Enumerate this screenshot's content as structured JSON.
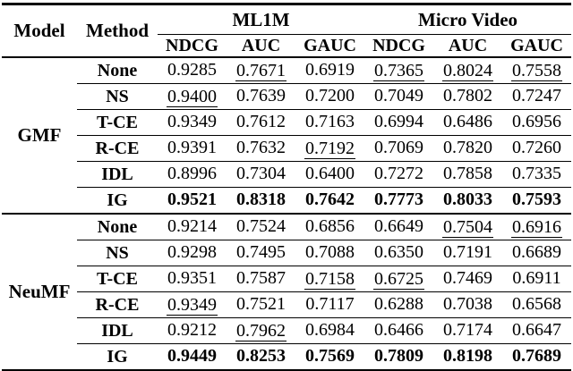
{
  "page": {
    "background_color": "#ffffff",
    "text_color": "#000000",
    "rule_color": "#000000",
    "notes": "Academic paper results table; bold = best result, underline = second-best result"
  },
  "table": {
    "header": {
      "model": "Model",
      "method": "Method",
      "groups": [
        {
          "label": "ML1M"
        },
        {
          "label": "Micro Video"
        }
      ],
      "metrics": [
        "NDCG",
        "AUC",
        "GAUC",
        "NDCG",
        "AUC",
        "GAUC"
      ]
    },
    "sections": [
      {
        "model": "GMF",
        "rows": [
          {
            "method": "None",
            "bold": false,
            "values": [
              "0.9285",
              "0.7671",
              "0.6919",
              "0.7365",
              "0.8024",
              "0.7558"
            ],
            "underlined": [
              false,
              true,
              false,
              true,
              true,
              true
            ]
          },
          {
            "method": "NS",
            "bold": false,
            "values": [
              "0.9400",
              "0.7639",
              "0.7200",
              "0.7049",
              "0.7802",
              "0.7247"
            ],
            "underlined": [
              true,
              false,
              false,
              false,
              false,
              false
            ]
          },
          {
            "method": "T-CE",
            "bold": false,
            "values": [
              "0.9349",
              "0.7612",
              "0.7163",
              "0.6994",
              "0.6486",
              "0.6956"
            ],
            "underlined": [
              false,
              false,
              false,
              false,
              false,
              false
            ]
          },
          {
            "method": "R-CE",
            "bold": false,
            "values": [
              "0.9391",
              "0.7632",
              "0.7192",
              "0.7069",
              "0.7820",
              "0.7260"
            ],
            "underlined": [
              false,
              false,
              true,
              false,
              false,
              false
            ]
          },
          {
            "method": "IDL",
            "bold": false,
            "values": [
              "0.8996",
              "0.7304",
              "0.6400",
              "0.7272",
              "0.7858",
              "0.7335"
            ],
            "underlined": [
              false,
              false,
              false,
              false,
              false,
              false
            ]
          },
          {
            "method": "IG",
            "bold": true,
            "values": [
              "0.9521",
              "0.8318",
              "0.7642",
              "0.7773",
              "0.8033",
              "0.7593"
            ],
            "underlined": [
              false,
              false,
              false,
              false,
              false,
              false
            ]
          }
        ]
      },
      {
        "model": "NeuMF",
        "rows": [
          {
            "method": "None",
            "bold": false,
            "values": [
              "0.9214",
              "0.7524",
              "0.6856",
              "0.6649",
              "0.7504",
              "0.6916"
            ],
            "underlined": [
              false,
              false,
              false,
              false,
              true,
              true
            ]
          },
          {
            "method": "NS",
            "bold": false,
            "values": [
              "0.9298",
              "0.7495",
              "0.7088",
              "0.6350",
              "0.7191",
              "0.6689"
            ],
            "underlined": [
              false,
              false,
              false,
              false,
              false,
              false
            ]
          },
          {
            "method": "T-CE",
            "bold": false,
            "values": [
              "0.9351",
              "0.7587",
              "0.7158",
              "0.6725",
              "0.7469",
              "0.6911"
            ],
            "underlined": [
              false,
              false,
              true,
              true,
              false,
              false
            ]
          },
          {
            "method": "R-CE",
            "bold": false,
            "values": [
              "0.9349",
              "0.7521",
              "0.7117",
              "0.6288",
              "0.7038",
              "0.6568"
            ],
            "underlined": [
              true,
              false,
              false,
              false,
              false,
              false
            ]
          },
          {
            "method": "IDL",
            "bold": false,
            "values": [
              "0.9212",
              "0.7962",
              "0.6984",
              "0.6466",
              "0.7174",
              "0.6647"
            ],
            "underlined": [
              false,
              true,
              false,
              false,
              false,
              false
            ]
          },
          {
            "method": "IG",
            "bold": true,
            "values": [
              "0.9449",
              "0.8253",
              "0.7569",
              "0.7809",
              "0.8198",
              "0.7689"
            ],
            "underlined": [
              false,
              false,
              false,
              false,
              false,
              false
            ]
          }
        ]
      }
    ]
  }
}
